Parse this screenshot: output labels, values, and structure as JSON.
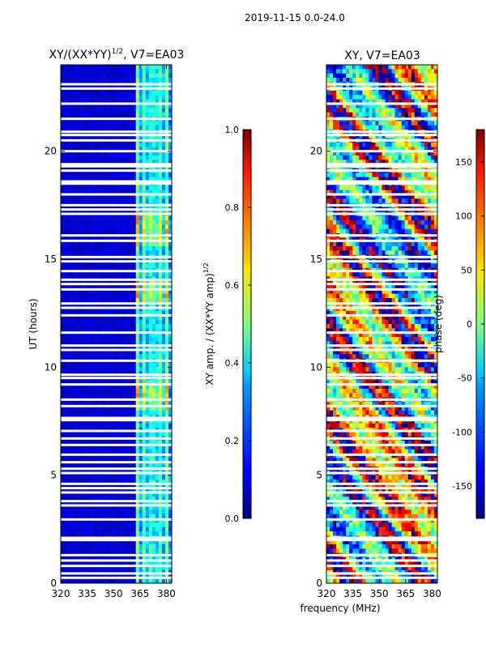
{
  "figure": {
    "suptitle": "2019-11-15 0.0-24.0",
    "shared_xlabel": "frequency (MHz)"
  },
  "chart_data": [
    {
      "type": "heatmap",
      "title_main": "XY/(XX*YY)",
      "title_exp": "1/2",
      "title_suffix": ", V7=EA03",
      "ylabel": "UT (hours)",
      "xlim": [
        320,
        383
      ],
      "ylim": [
        0,
        24
      ],
      "xticks": [
        "320",
        "335",
        "350",
        "365",
        "380"
      ],
      "xtick_values": [
        320,
        335,
        350,
        365,
        380
      ],
      "yticks": [
        "0",
        "5",
        "10",
        "15",
        "20"
      ],
      "ytick_values": [
        0,
        5,
        10,
        15,
        20
      ],
      "gap_hours": [
        0.25,
        0.45,
        0.8,
        1.05,
        1.3,
        2.0,
        2.1,
        2.95,
        3.6,
        3.8,
        4.2,
        4.4,
        4.6,
        5.1,
        5.3,
        5.6,
        5.95,
        6.4,
        6.7,
        7.05,
        7.55,
        7.65,
        8.2,
        8.5,
        9.2,
        9.5,
        9.65,
        10.3,
        10.8,
        11.0,
        11.6,
        12.4,
        12.75,
        12.95,
        13.6,
        13.85,
        14.05,
        14.45,
        14.9,
        15.1,
        15.85,
        16.1,
        17.1,
        17.3,
        17.5,
        18.0,
        18.5,
        18.6,
        19.1,
        19.3,
        19.4,
        20.0,
        20.5,
        20.75,
        20.9,
        21.5,
        22.2,
        22.9,
        23.1
      ],
      "colorbar": {
        "label_main": "XY amp. / (XX*YY amp)",
        "label_exp": "1/2",
        "ticks": [
          "0.0",
          "0.2",
          "0.4",
          "0.6",
          "0.8",
          "1.0"
        ],
        "tick_values": [
          0.0,
          0.2,
          0.4,
          0.6,
          0.8,
          1.0
        ],
        "range": [
          0,
          1
        ]
      }
    },
    {
      "type": "heatmap",
      "title": "XY, V7=EA03",
      "ylabel": "",
      "xlim": [
        320,
        383
      ],
      "ylim": [
        0,
        24
      ],
      "xticks": [
        "320",
        "335",
        "350",
        "365",
        "380"
      ],
      "xtick_values": [
        320,
        335,
        350,
        365,
        380
      ],
      "yticks": [
        "0",
        "5",
        "10",
        "15",
        "20"
      ],
      "ytick_values": [
        0,
        5,
        10,
        15,
        20
      ],
      "colorbar": {
        "label": "phase (deg)",
        "ticks": [
          "-150",
          "-100",
          "-50",
          "0",
          "50",
          "100",
          "150"
        ],
        "tick_values": [
          -150,
          -100,
          -50,
          0,
          50,
          100,
          150
        ],
        "range": [
          -180,
          180
        ]
      }
    }
  ],
  "colors": {
    "axis": "#000000",
    "gap": "#ffffff",
    "background": "#ffffff"
  }
}
